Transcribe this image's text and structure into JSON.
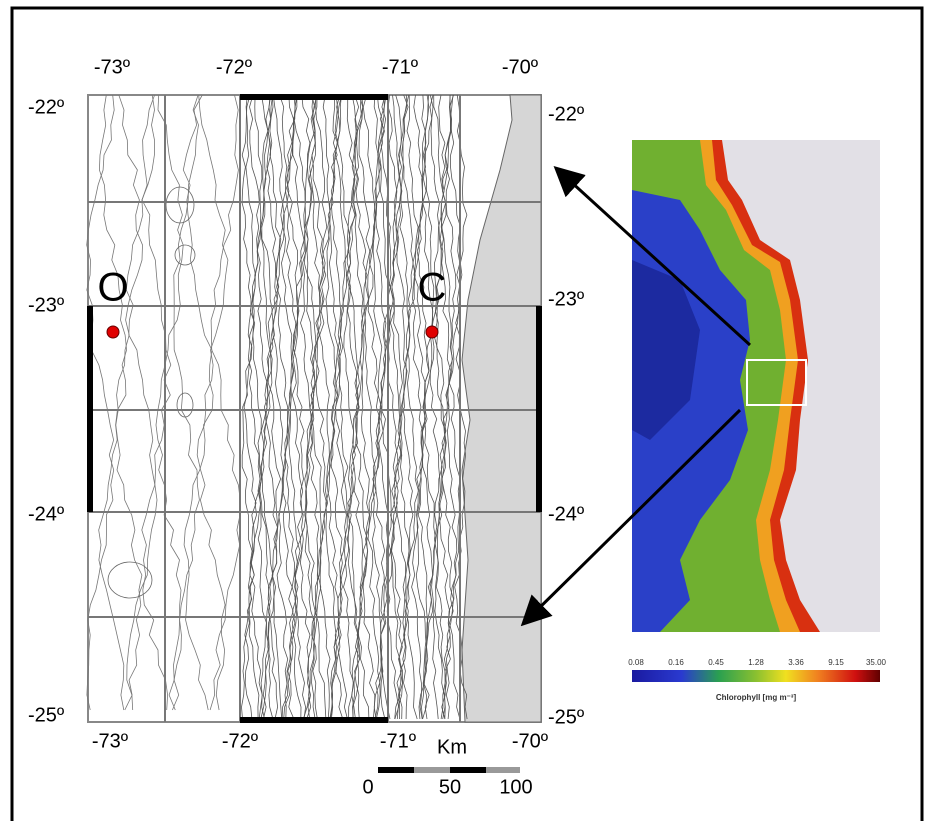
{
  "map": {
    "top_lon_labels": [
      "-73º",
      "-72º",
      "-71º",
      "-70º"
    ],
    "bottom_lon_labels": [
      "-73º",
      "-72º",
      "-71º",
      "-70º"
    ],
    "left_lat_labels": [
      "-22º",
      "-23º",
      "-24º",
      "-25º"
    ],
    "right_lat_labels": [
      "-22º",
      "-23º",
      "-24º",
      "-25º"
    ],
    "stations": [
      {
        "label": "O"
      },
      {
        "label": "C"
      }
    ],
    "scale_bar": {
      "unit": "Km",
      "labels": [
        "0",
        "50",
        "100"
      ]
    }
  },
  "satellite": {
    "colorbar_labels": [
      "0.08",
      "0.16",
      "0.45",
      "1.28",
      "3.36",
      "9.15",
      "35.00"
    ],
    "colorbar_title": "Chlorophyll [mg m⁻³]"
  }
}
